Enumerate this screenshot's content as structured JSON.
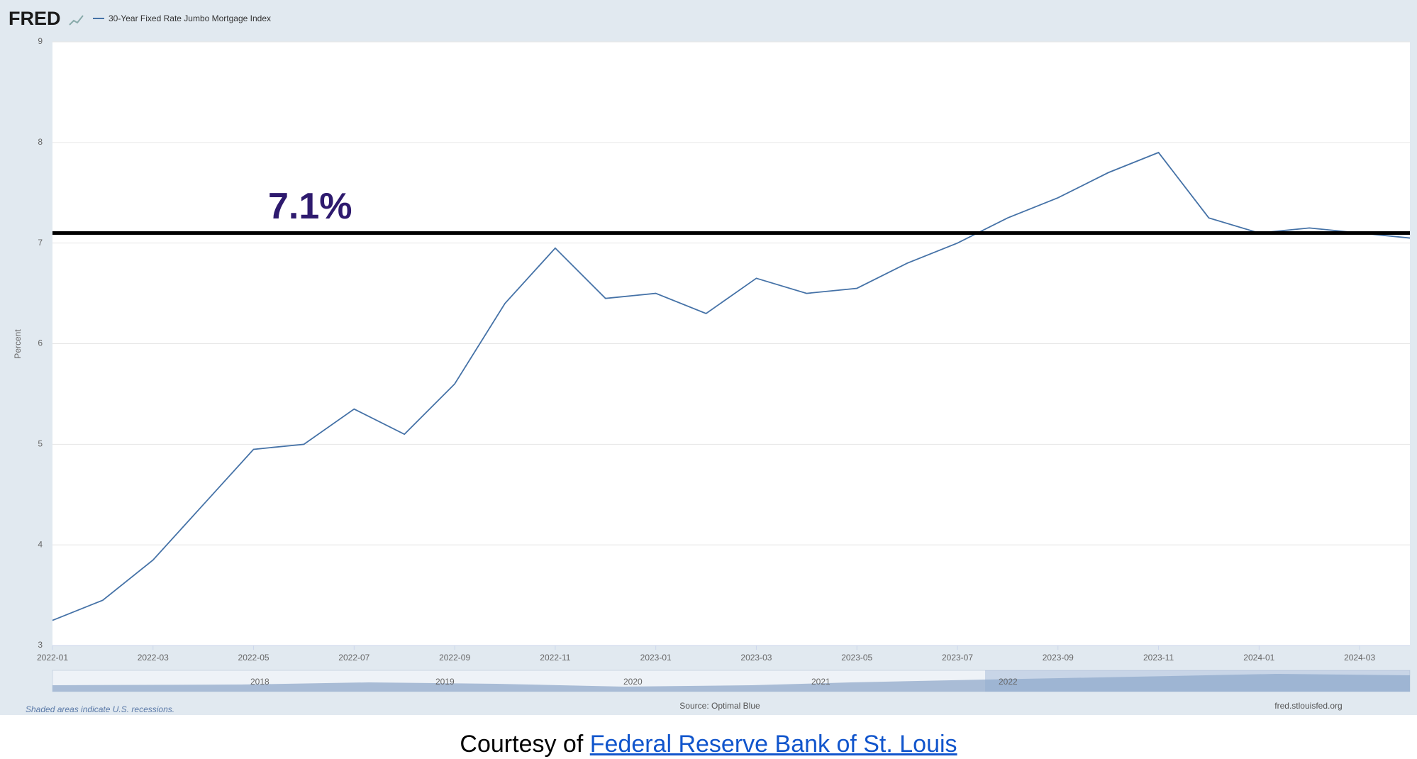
{
  "chart_data": {
    "type": "line",
    "brand": "FRED",
    "y_label": "Percent",
    "x": [
      "2022-01",
      "2022-02",
      "2022-03",
      "2022-04",
      "2022-05",
      "2022-06",
      "2022-07",
      "2022-08",
      "2022-09",
      "2022-10",
      "2022-11",
      "2022-12",
      "2023-01",
      "2023-02",
      "2023-03",
      "2023-04",
      "2023-05",
      "2023-06",
      "2023-07",
      "2023-08",
      "2023-09",
      "2023-10",
      "2023-11",
      "2023-12",
      "2024-01",
      "2024-02",
      "2024-03",
      "2024-04"
    ],
    "series": [
      {
        "name": "30-Year Fixed Rate Jumbo Mortgage Index",
        "color": "#4572a7",
        "values": [
          3.25,
          3.45,
          3.85,
          4.4,
          4.95,
          5.0,
          5.35,
          5.1,
          5.6,
          6.4,
          6.95,
          6.45,
          6.5,
          6.3,
          6.65,
          6.5,
          6.55,
          6.8,
          7.0,
          7.25,
          7.45,
          7.7,
          7.9,
          7.25,
          7.1,
          7.15,
          7.1,
          7.05
        ]
      }
    ],
    "xlim": [
      "2022-01",
      "2024-04"
    ],
    "xticks": [
      "2022-01",
      "2022-03",
      "2022-05",
      "2022-07",
      "2022-09",
      "2022-11",
      "2023-01",
      "2023-03",
      "2023-05",
      "2023-07",
      "2023-09",
      "2023-11",
      "2024-01",
      "2024-03"
    ],
    "ylim": [
      3,
      9
    ],
    "yticks": [
      3,
      4,
      5,
      6,
      7,
      8,
      9
    ],
    "grid": true,
    "annotations": [
      {
        "value": 7.1,
        "label": "7.1%"
      }
    ],
    "navigator_labels": [
      "2018",
      "2019",
      "2020",
      "2021",
      "2022"
    ],
    "footer_note": "Shaded areas indicate U.S. recessions.",
    "source": "Source: Optimal Blue",
    "site": "fred.stlouisfed.org"
  },
  "caption": {
    "text": "Courtesy of",
    "link": "Federal Reserve Bank of St. Louis"
  }
}
